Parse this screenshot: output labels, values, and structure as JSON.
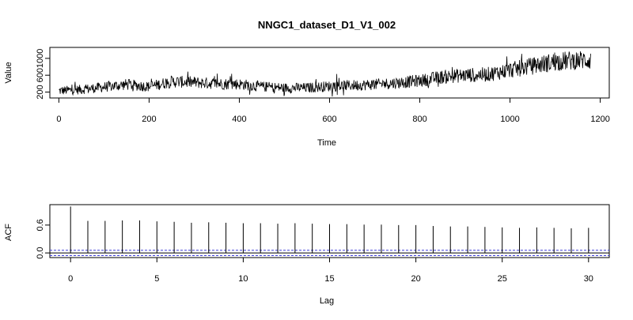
{
  "chart_data": [
    {
      "type": "line",
      "title": "NNGC1_dataset_D1_V1_002",
      "xlabel": "Time",
      "ylabel": "Value",
      "xlim": [
        -20,
        1220
      ],
      "ylim": [
        60,
        1260
      ],
      "x_ticks": [
        0,
        200,
        400,
        600,
        800,
        1000,
        1200
      ],
      "y_ticks": [
        200,
        600,
        1000
      ],
      "x_tick_labels": [
        "0",
        "200",
        "400",
        "600",
        "800",
        "1000",
        "1200"
      ],
      "y_tick_labels": [
        "200",
        "600",
        "1000"
      ],
      "n_points": 1180,
      "series": [
        {
          "name": "Value",
          "color": "#000000",
          "x": [
            0,
            50,
            100,
            150,
            200,
            250,
            300,
            350,
            400,
            450,
            500,
            550,
            600,
            650,
            700,
            750,
            800,
            850,
            900,
            950,
            1000,
            1050,
            1100,
            1150,
            1180
          ],
          "y": [
            230,
            260,
            320,
            380,
            330,
            450,
            430,
            400,
            390,
            330,
            300,
            300,
            340,
            360,
            380,
            420,
            470,
            560,
            600,
            620,
            720,
            820,
            920,
            960,
            960
          ]
        }
      ]
    },
    {
      "type": "bar",
      "title": "",
      "xlabel": "Lag",
      "ylabel": "ACF",
      "xlim": [
        -1.2,
        31.2
      ],
      "ylim": [
        -0.1,
        1.04
      ],
      "x_ticks": [
        0,
        5,
        10,
        15,
        20,
        25,
        30
      ],
      "y_ticks": [
        0.0,
        0.6
      ],
      "x_tick_labels": [
        "0",
        "5",
        "10",
        "15",
        "20",
        "25",
        "30"
      ],
      "y_tick_labels": [
        "0.0",
        "0.6"
      ],
      "confidence_bound": 0.057,
      "x": [
        0,
        1,
        2,
        3,
        4,
        5,
        6,
        7,
        8,
        9,
        10,
        11,
        12,
        13,
        14,
        15,
        16,
        17,
        18,
        19,
        20,
        21,
        22,
        23,
        24,
        25,
        26,
        27,
        28,
        29,
        30
      ],
      "values": [
        1.0,
        0.69,
        0.69,
        0.7,
        0.7,
        0.68,
        0.67,
        0.65,
        0.66,
        0.65,
        0.64,
        0.64,
        0.63,
        0.64,
        0.63,
        0.62,
        0.62,
        0.61,
        0.61,
        0.6,
        0.6,
        0.58,
        0.57,
        0.57,
        0.56,
        0.55,
        0.54,
        0.55,
        0.54,
        0.53,
        0.54
      ],
      "bar_color": "#000000",
      "zero_line_color": "#000000",
      "bound_color": "#3b3bd6"
    }
  ]
}
